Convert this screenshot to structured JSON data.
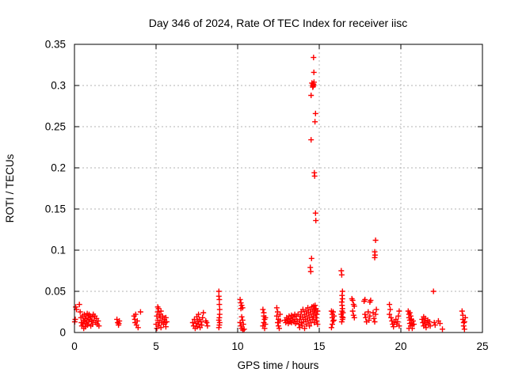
{
  "chart_data": {
    "type": "scatter",
    "title": "Day 346 of 2024, Rate Of TEC Index for receiver iisc",
    "xlabel": "GPS time / hours",
    "ylabel": "ROTI / TECUs",
    "xlim": [
      0,
      25
    ],
    "ylim": [
      0,
      0.35
    ],
    "x_ticks": [
      0,
      5,
      10,
      15,
      20,
      25
    ],
    "x_tick_labels": [
      "0",
      "5",
      "10",
      "15",
      "20",
      "25"
    ],
    "y_ticks": [
      0,
      0.05,
      0.1,
      0.15,
      0.2,
      0.25,
      0.3,
      0.35
    ],
    "y_tick_labels": [
      "0",
      "0.05",
      "0.1",
      "0.15",
      "0.2",
      "0.25",
      "0.3",
      "0.35"
    ],
    "grid": true,
    "legend_position": "none",
    "marker": "plus",
    "marker_color": "#ff0000",
    "grid_color": "#b3b3b3",
    "axis_color": "#000000",
    "background_color": "#ffffff",
    "points": [
      [
        0.02,
        0.013
      ],
      [
        0.05,
        0.016
      ],
      [
        0.08,
        0.031
      ],
      [
        0.12,
        0.028
      ],
      [
        0.3,
        0.034
      ],
      [
        0.35,
        0.025
      ],
      [
        0.4,
        0.018
      ],
      [
        0.42,
        0.012
      ],
      [
        0.45,
        0.008
      ],
      [
        0.5,
        0.02
      ],
      [
        0.52,
        0.01
      ],
      [
        0.55,
        0.015
      ],
      [
        0.57,
        0.005
      ],
      [
        0.6,
        0.022
      ],
      [
        0.62,
        0.013
      ],
      [
        0.65,
        0.017
      ],
      [
        0.67,
        0.007
      ],
      [
        0.7,
        0.02
      ],
      [
        0.72,
        0.011
      ],
      [
        0.75,
        0.015
      ],
      [
        0.78,
        0.023
      ],
      [
        0.8,
        0.009
      ],
      [
        0.85,
        0.018
      ],
      [
        0.88,
        0.013
      ],
      [
        0.9,
        0.022
      ],
      [
        0.95,
        0.016
      ],
      [
        0.98,
        0.02
      ],
      [
        1.0,
        0.008
      ],
      [
        1.05,
        0.014
      ],
      [
        1.08,
        0.019
      ],
      [
        1.1,
        0.01
      ],
      [
        1.15,
        0.022
      ],
      [
        1.2,
        0.015
      ],
      [
        1.25,
        0.02
      ],
      [
        1.3,
        0.012
      ],
      [
        1.35,
        0.017
      ],
      [
        1.4,
        0.01
      ],
      [
        1.45,
        0.014
      ],
      [
        1.5,
        0.008
      ],
      [
        2.6,
        0.016
      ],
      [
        2.65,
        0.012
      ],
      [
        2.7,
        0.009
      ],
      [
        2.72,
        0.011
      ],
      [
        2.75,
        0.014
      ],
      [
        3.65,
        0.02
      ],
      [
        3.7,
        0.016
      ],
      [
        3.72,
        0.012
      ],
      [
        3.75,
        0.022
      ],
      [
        3.8,
        0.009
      ],
      [
        3.85,
        0.014
      ],
      [
        3.9,
        0.006
      ],
      [
        4.05,
        0.025
      ],
      [
        5.0,
        0.01
      ],
      [
        5.05,
        0.02
      ],
      [
        5.05,
        0.005
      ],
      [
        5.1,
        0.031
      ],
      [
        5.1,
        0.025
      ],
      [
        5.1,
        0.015
      ],
      [
        5.15,
        0.029
      ],
      [
        5.15,
        0.008
      ],
      [
        5.2,
        0.022
      ],
      [
        5.2,
        0.012
      ],
      [
        5.25,
        0.018
      ],
      [
        5.3,
        0.026
      ],
      [
        5.3,
        0.006
      ],
      [
        5.35,
        0.014
      ],
      [
        5.4,
        0.02
      ],
      [
        5.45,
        0.01
      ],
      [
        5.5,
        0.016
      ],
      [
        5.55,
        0.012
      ],
      [
        5.6,
        0.018
      ],
      [
        5.6,
        0.007
      ],
      [
        5.65,
        0.013
      ],
      [
        7.25,
        0.012
      ],
      [
        7.3,
        0.008
      ],
      [
        7.35,
        0.016
      ],
      [
        7.4,
        0.005
      ],
      [
        7.45,
        0.011
      ],
      [
        7.5,
        0.019
      ],
      [
        7.52,
        0.007
      ],
      [
        7.55,
        0.014
      ],
      [
        7.6,
        0.022
      ],
      [
        7.62,
        0.01
      ],
      [
        7.65,
        0.016
      ],
      [
        7.7,
        0.006
      ],
      [
        7.75,
        0.013
      ],
      [
        7.8,
        0.009
      ],
      [
        7.85,
        0.018
      ],
      [
        7.9,
        0.024
      ],
      [
        8.05,
        0.014
      ],
      [
        8.1,
        0.012
      ],
      [
        8.15,
        0.008
      ],
      [
        8.85,
        0.05
      ],
      [
        8.85,
        0.044
      ],
      [
        8.88,
        0.04
      ],
      [
        8.88,
        0.034
      ],
      [
        8.9,
        0.028
      ],
      [
        8.9,
        0.022
      ],
      [
        8.88,
        0.018
      ],
      [
        8.85,
        0.015
      ],
      [
        8.9,
        0.012
      ],
      [
        8.88,
        0.009
      ],
      [
        8.85,
        0.006
      ],
      [
        10.15,
        0.04
      ],
      [
        10.2,
        0.036
      ],
      [
        10.25,
        0.033
      ],
      [
        10.3,
        0.03
      ],
      [
        10.2,
        0.029
      ],
      [
        10.25,
        0.019
      ],
      [
        10.15,
        0.012
      ],
      [
        10.2,
        0.008
      ],
      [
        10.25,
        0.005
      ],
      [
        10.3,
        0.015
      ],
      [
        10.35,
        0.01
      ],
      [
        10.4,
        0.004
      ],
      [
        10.32,
        0.003
      ],
      [
        11.55,
        0.028
      ],
      [
        11.6,
        0.024
      ],
      [
        11.6,
        0.02
      ],
      [
        11.65,
        0.016
      ],
      [
        11.6,
        0.012
      ],
      [
        11.55,
        0.008
      ],
      [
        11.65,
        0.005
      ],
      [
        11.7,
        0.018
      ],
      [
        11.7,
        0.01
      ],
      [
        12.4,
        0.03
      ],
      [
        12.45,
        0.025
      ],
      [
        12.4,
        0.02
      ],
      [
        12.5,
        0.016
      ],
      [
        12.45,
        0.012
      ],
      [
        12.5,
        0.008
      ],
      [
        12.55,
        0.005
      ],
      [
        12.6,
        0.022
      ],
      [
        12.6,
        0.014
      ],
      [
        12.9,
        0.015
      ],
      [
        12.95,
        0.012
      ],
      [
        13.0,
        0.018
      ],
      [
        13.05,
        0.014
      ],
      [
        13.1,
        0.016
      ],
      [
        13.1,
        0.011
      ],
      [
        13.15,
        0.02
      ],
      [
        13.2,
        0.013
      ],
      [
        13.25,
        0.017
      ],
      [
        13.3,
        0.012
      ],
      [
        13.3,
        0.021
      ],
      [
        13.35,
        0.015
      ],
      [
        13.4,
        0.019
      ],
      [
        13.45,
        0.013
      ],
      [
        13.5,
        0.016
      ],
      [
        13.5,
        0.022
      ],
      [
        13.55,
        0.011
      ],
      [
        13.6,
        0.02
      ],
      [
        13.65,
        0.014
      ],
      [
        13.7,
        0.022
      ],
      [
        13.75,
        0.01
      ],
      [
        13.8,
        0.016
      ],
      [
        13.8,
        0.006
      ],
      [
        13.85,
        0.02
      ],
      [
        13.9,
        0.012
      ],
      [
        13.9,
        0.025
      ],
      [
        13.95,
        0.008
      ],
      [
        14.0,
        0.018
      ],
      [
        14.0,
        0.028
      ],
      [
        14.05,
        0.013
      ],
      [
        14.1,
        0.022
      ],
      [
        14.1,
        0.005
      ],
      [
        14.15,
        0.016
      ],
      [
        14.2,
        0.026
      ],
      [
        14.2,
        0.01
      ],
      [
        14.25,
        0.02
      ],
      [
        14.3,
        0.03
      ],
      [
        14.3,
        0.014
      ],
      [
        14.35,
        0.024
      ],
      [
        14.4,
        0.018
      ],
      [
        14.4,
        0.008
      ],
      [
        14.45,
        0.028
      ],
      [
        14.5,
        0.022
      ],
      [
        14.5,
        0.012
      ],
      [
        14.55,
        0.031
      ],
      [
        14.6,
        0.026
      ],
      [
        14.6,
        0.016
      ],
      [
        14.65,
        0.032
      ],
      [
        14.65,
        0.02
      ],
      [
        14.7,
        0.028
      ],
      [
        14.7,
        0.012
      ],
      [
        14.75,
        0.024
      ],
      [
        14.75,
        0.033
      ],
      [
        14.8,
        0.018
      ],
      [
        14.8,
        0.029
      ],
      [
        14.85,
        0.022
      ],
      [
        14.85,
        0.014
      ],
      [
        14.9,
        0.026
      ],
      [
        14.9,
        0.01
      ],
      [
        14.65,
        0.334
      ],
      [
        14.67,
        0.316
      ],
      [
        14.55,
        0.303
      ],
      [
        14.6,
        0.3
      ],
      [
        14.62,
        0.302
      ],
      [
        14.63,
        0.299
      ],
      [
        14.65,
        0.301
      ],
      [
        14.68,
        0.304
      ],
      [
        14.6,
        0.298
      ],
      [
        14.5,
        0.288
      ],
      [
        14.77,
        0.266
      ],
      [
        14.74,
        0.256
      ],
      [
        14.5,
        0.234
      ],
      [
        14.7,
        0.194
      ],
      [
        14.72,
        0.19
      ],
      [
        14.77,
        0.145
      ],
      [
        14.79,
        0.136
      ],
      [
        14.53,
        0.09
      ],
      [
        14.45,
        0.079
      ],
      [
        14.48,
        0.074
      ],
      [
        15.75,
        0.026
      ],
      [
        15.8,
        0.022
      ],
      [
        15.8,
        0.018
      ],
      [
        15.85,
        0.014
      ],
      [
        15.8,
        0.01
      ],
      [
        15.75,
        0.006
      ],
      [
        15.85,
        0.025
      ],
      [
        15.9,
        0.02
      ],
      [
        15.9,
        0.015
      ],
      [
        16.35,
        0.075
      ],
      [
        16.38,
        0.07
      ],
      [
        16.42,
        0.05
      ],
      [
        16.4,
        0.045
      ],
      [
        16.42,
        0.041
      ],
      [
        16.38,
        0.037
      ],
      [
        16.4,
        0.033
      ],
      [
        16.42,
        0.029
      ],
      [
        16.4,
        0.026
      ],
      [
        16.35,
        0.022
      ],
      [
        16.4,
        0.019
      ],
      [
        16.42,
        0.016
      ],
      [
        16.38,
        0.013
      ],
      [
        16.45,
        0.024
      ],
      [
        16.45,
        0.018
      ],
      [
        17.0,
        0.041
      ],
      [
        17.05,
        0.039
      ],
      [
        17.1,
        0.034
      ],
      [
        17.15,
        0.032
      ],
      [
        17.05,
        0.026
      ],
      [
        17.1,
        0.021
      ],
      [
        17.15,
        0.018
      ],
      [
        17.75,
        0.038
      ],
      [
        17.8,
        0.04
      ],
      [
        18.1,
        0.037
      ],
      [
        18.15,
        0.039
      ],
      [
        17.8,
        0.022
      ],
      [
        17.85,
        0.018
      ],
      [
        18.0,
        0.025
      ],
      [
        18.05,
        0.015
      ],
      [
        18.1,
        0.02
      ],
      [
        17.9,
        0.013
      ],
      [
        18.3,
        0.024
      ],
      [
        18.35,
        0.017
      ],
      [
        18.4,
        0.013
      ],
      [
        18.45,
        0.112
      ],
      [
        18.4,
        0.098
      ],
      [
        18.42,
        0.094
      ],
      [
        18.4,
        0.091
      ],
      [
        18.45,
        0.022
      ],
      [
        18.5,
        0.028
      ],
      [
        19.3,
        0.034
      ],
      [
        19.35,
        0.028
      ],
      [
        19.3,
        0.022
      ],
      [
        19.4,
        0.018
      ],
      [
        19.45,
        0.014
      ],
      [
        19.5,
        0.01
      ],
      [
        19.55,
        0.007
      ],
      [
        19.6,
        0.012
      ],
      [
        19.7,
        0.016
      ],
      [
        19.75,
        0.01
      ],
      [
        19.8,
        0.013
      ],
      [
        19.85,
        0.02
      ],
      [
        19.9,
        0.026
      ],
      [
        19.9,
        0.008
      ],
      [
        20.45,
        0.026
      ],
      [
        20.5,
        0.022
      ],
      [
        20.5,
        0.018
      ],
      [
        20.55,
        0.015
      ],
      [
        20.55,
        0.011
      ],
      [
        20.6,
        0.008
      ],
      [
        20.6,
        0.02
      ],
      [
        20.65,
        0.016
      ],
      [
        20.65,
        0.012
      ],
      [
        20.7,
        0.009
      ],
      [
        20.7,
        0.005
      ],
      [
        20.75,
        0.014
      ],
      [
        20.8,
        0.01
      ],
      [
        20.5,
        0.005
      ],
      [
        20.55,
        0.024
      ],
      [
        21.3,
        0.016
      ],
      [
        21.35,
        0.012
      ],
      [
        21.4,
        0.019
      ],
      [
        21.4,
        0.008
      ],
      [
        21.45,
        0.014
      ],
      [
        21.5,
        0.01
      ],
      [
        21.5,
        0.017
      ],
      [
        21.55,
        0.006
      ],
      [
        21.6,
        0.012
      ],
      [
        21.65,
        0.015
      ],
      [
        21.7,
        0.01
      ],
      [
        21.75,
        0.013
      ],
      [
        21.8,
        0.008
      ],
      [
        22.0,
        0.05
      ],
      [
        22.05,
        0.012
      ],
      [
        22.1,
        0.009
      ],
      [
        22.3,
        0.014
      ],
      [
        22.4,
        0.011
      ],
      [
        22.55,
        0.004
      ],
      [
        23.75,
        0.026
      ],
      [
        23.8,
        0.021
      ],
      [
        23.8,
        0.016
      ],
      [
        23.85,
        0.012
      ],
      [
        23.85,
        0.008
      ],
      [
        23.9,
        0.004
      ],
      [
        23.95,
        0.018
      ],
      [
        23.9,
        0.013
      ]
    ]
  }
}
